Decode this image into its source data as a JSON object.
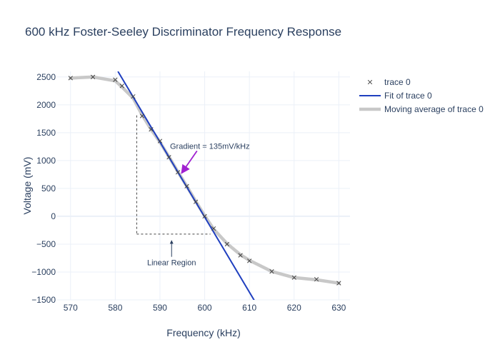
{
  "chart_data": {
    "type": "scatter",
    "title": "600 kHz Foster-Seeley Discriminator Frequency Response",
    "xlabel": "Frequency (kHz)",
    "ylabel": "Voltage (mV)",
    "xlim": [
      567,
      632.5
    ],
    "ylim": [
      -1500,
      2600
    ],
    "x_ticks": [
      570,
      580,
      590,
      600,
      610,
      620,
      630
    ],
    "y_ticks": [
      -1500,
      -1000,
      -500,
      0,
      500,
      1000,
      1500,
      2000,
      2500
    ],
    "x_tick_labels": [
      "570",
      "580",
      "590",
      "600",
      "610",
      "620",
      "630"
    ],
    "y_tick_labels": [
      "−1500",
      "−1000",
      "−500",
      "0",
      "500",
      "1000",
      "1500",
      "2000",
      "2500"
    ],
    "grid": true,
    "legend_position": "top-right",
    "series": [
      {
        "name": "trace 0",
        "kind": "markers",
        "marker": "x",
        "color": "#444444",
        "x": [
          570,
          575,
          580,
          581.5,
          584,
          586,
          588,
          590,
          592,
          594,
          596,
          598,
          600,
          602,
          605,
          608,
          610,
          615,
          620,
          625,
          630
        ],
        "y": [
          2480,
          2500,
          2450,
          2340,
          2150,
          1800,
          1560,
          1350,
          1060,
          790,
          540,
          260,
          0,
          -220,
          -500,
          -700,
          -800,
          -990,
          -1100,
          -1130,
          -1200
        ]
      },
      {
        "name": "Fit of trace 0",
        "kind": "line",
        "color": "#1f3fbf",
        "x": [
          580.6,
          611.1
        ],
        "y": [
          2600,
          -1510
        ]
      },
      {
        "name": "Moving average of trace 0",
        "kind": "line",
        "color": "#c8c8c8",
        "x": [
          570,
          575,
          580,
          581.5,
          584,
          586,
          588,
          590,
          592,
          594,
          596,
          598,
          600,
          602,
          605,
          608,
          610,
          615,
          620,
          625,
          630
        ],
        "y": [
          2480,
          2500,
          2430,
          2320,
          2120,
          1820,
          1560,
          1330,
          1070,
          800,
          540,
          270,
          10,
          -230,
          -490,
          -690,
          -790,
          -990,
          -1100,
          -1140,
          -1200
        ]
      }
    ],
    "annotations": [
      {
        "text": "Gradient = 135mV/kHz",
        "x": 597,
        "y": 1250,
        "ax": 594.5,
        "ay": 760,
        "color": "#a020d0"
      },
      {
        "text": "Linear Region",
        "x": 592.6,
        "y": -830,
        "ax": 592.6,
        "ay": -460,
        "color": "#2a3f5f"
      }
    ],
    "guide_lines": {
      "vertical": {
        "x": 584.8,
        "y1": 1810,
        "y2": -320
      },
      "horizontal": {
        "y": -320,
        "x1": 584.8,
        "x2": 601.3
      }
    }
  }
}
